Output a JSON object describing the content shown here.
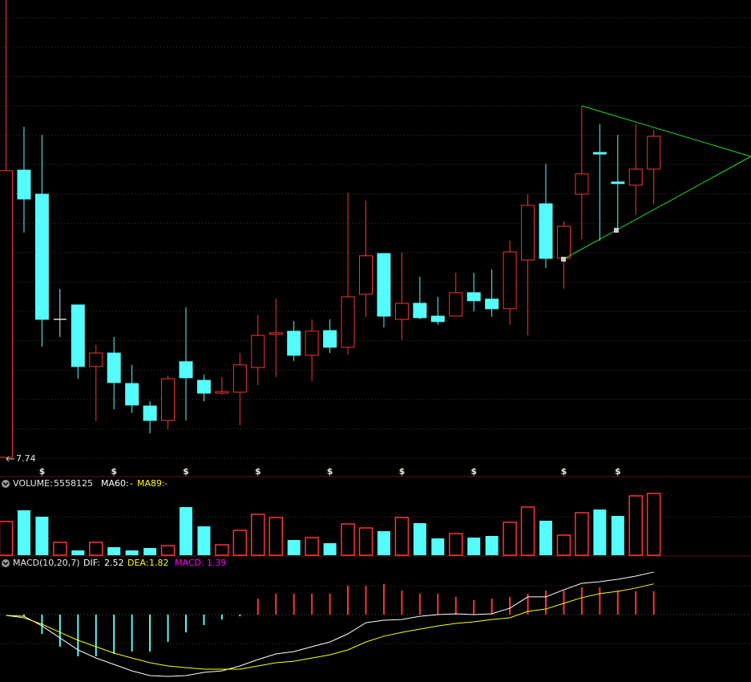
{
  "chart_data": [
    {
      "type": "candlestick",
      "open": [
        7.74,
        16.69,
        15.94,
        12.04,
        12.49,
        10.57,
        10.99,
        10.04,
        9.34,
        8.89,
        10.72,
        10.14,
        9.74,
        9.77,
        10.54,
        11.57,
        11.67,
        10.92,
        11.69,
        11.17,
        12.82,
        14.09,
        12.04,
        12.54,
        12.14,
        12.14,
        12.87,
        12.67,
        12.37,
        13.89,
        15.64,
        13.94,
        15.94,
        17.24,
        16.32,
        16.22,
        16.72
      ],
      "high": [
        21.99,
        18.04,
        17.79,
        12.99,
        12.49,
        11.24,
        11.49,
        10.62,
        9.49,
        10.29,
        12.42,
        10.32,
        10.24,
        10.99,
        12.19,
        12.69,
        11.99,
        12.04,
        12.04,
        15.99,
        15.74,
        14.09,
        14.12,
        13.37,
        12.74,
        13.49,
        13.49,
        13.59,
        14.49,
        15.94,
        16.89,
        15.09,
        18.69,
        18.12,
        17.79,
        18.12,
        17.94
      ],
      "low": [
        7.74,
        14.74,
        11.19,
        11.49,
        10.19,
        8.87,
        9.24,
        9.12,
        8.49,
        8.62,
        8.89,
        9.49,
        9.69,
        8.74,
        9.99,
        10.24,
        10.74,
        10.12,
        10.99,
        10.94,
        12.12,
        11.79,
        11.39,
        12.04,
        11.87,
        12.14,
        12.29,
        12.12,
        11.87,
        11.54,
        13.64,
        12.99,
        14.54,
        14.49,
        14.79,
        15.29,
        15.62
      ],
      "close": [
        16.67,
        15.79,
        12.04,
        12.04,
        10.57,
        10.99,
        10.07,
        9.37,
        8.89,
        10.19,
        10.22,
        9.74,
        9.79,
        10.62,
        11.54,
        11.62,
        10.92,
        11.67,
        11.17,
        12.74,
        14.02,
        12.14,
        12.54,
        12.09,
        11.97,
        12.87,
        12.62,
        12.37,
        14.14,
        15.59,
        13.94,
        14.94,
        16.57,
        17.19,
        16.27,
        16.72,
        17.74
      ],
      "up_color": "#ff3232",
      "down_color": "#54fcfc",
      "flat_color": "#dddddd",
      "ylim": [
        7.24,
        21.99
      ],
      "low_label": 7.74,
      "signal_label": "$",
      "signal_indices": [
        2,
        6,
        10,
        14,
        18,
        22,
        26,
        31,
        34
      ],
      "signal_color": "#ff3232"
    },
    {
      "type": "bar",
      "series": [
        {
          "name": "VOLUME:",
          "values": [
            3032000,
            4042000,
            3465000,
            1155000,
            433000,
            1155000,
            722000,
            433000,
            650000,
            866000,
            4331000,
            2599000,
            938000,
            2238000,
            3681000,
            3393000,
            1371000,
            1588000,
            1083000,
            2815000,
            2454000,
            2166000,
            3393000,
            2887000,
            1516000,
            1949000,
            1588000,
            1732000,
            2960000,
            4331000,
            3104000,
            1805000,
            3826000,
            4114000,
            3537000,
            5342000,
            5558125
          ]
        }
      ],
      "ma_labels": [
        {
          "name": "MA60:",
          "value": "-",
          "color": "#ffffff"
        },
        {
          "name": "MA89:",
          "value": "-",
          "color": "#ffff00"
        }
      ],
      "ylim": [
        0,
        5775000
      ]
    },
    {
      "type": "macd",
      "title": "MACD(10,20,7)",
      "series": [
        {
          "name": "DIF:",
          "color": "#ffffff",
          "kind": "line",
          "values": [
            -0.05,
            -0.1,
            -0.67,
            -1.38,
            -2.09,
            -2.57,
            -2.95,
            -3.33,
            -3.61,
            -3.66,
            -3.61,
            -3.42,
            -3.33,
            -3.04,
            -2.66,
            -2.33,
            -2.19,
            -1.9,
            -1.62,
            -1.14,
            -0.48,
            -0.33,
            -0.29,
            -0.1,
            0,
            0.05,
            0,
            0.05,
            0.38,
            1.05,
            1.05,
            1.47,
            1.85,
            1.95,
            2.09,
            2.28,
            2.52
          ]
        },
        {
          "name": "DEA:",
          "color": "#ffff00",
          "kind": "line",
          "values": [
            -0.05,
            -0.19,
            -0.57,
            -1.05,
            -1.52,
            -1.9,
            -2.28,
            -2.57,
            -2.85,
            -3.04,
            -3.14,
            -3.23,
            -3.23,
            -3.23,
            -3.04,
            -2.85,
            -2.76,
            -2.57,
            -2.38,
            -2.09,
            -1.62,
            -1.28,
            -1.05,
            -0.86,
            -0.67,
            -0.52,
            -0.43,
            -0.29,
            -0.19,
            0.19,
            0.33,
            0.67,
            1.0,
            1.24,
            1.38,
            1.57,
            1.82
          ]
        },
        {
          "name": "MACD:",
          "color": "#ff00ff",
          "kind": "bar",
          "values": [
            0,
            -0.1,
            -1.14,
            -1.9,
            -2.47,
            -2.47,
            -2.33,
            -2.19,
            -2.19,
            -1.62,
            -1.05,
            -0.62,
            -0.29,
            -0.1,
            0.95,
            1.24,
            1.24,
            1.24,
            1.24,
            1.71,
            1.71,
            1.81,
            1.43,
            1.24,
            1.24,
            1.05,
            0.86,
            0.95,
            1.05,
            1.24,
            1.43,
            1.43,
            1.62,
            1.62,
            1.43,
            1.38,
            1.39
          ]
        }
      ],
      "up_color": "#ff3232",
      "down_color": "#54fcfc",
      "ylim": [
        -3.99,
        3.135
      ]
    }
  ]
}
